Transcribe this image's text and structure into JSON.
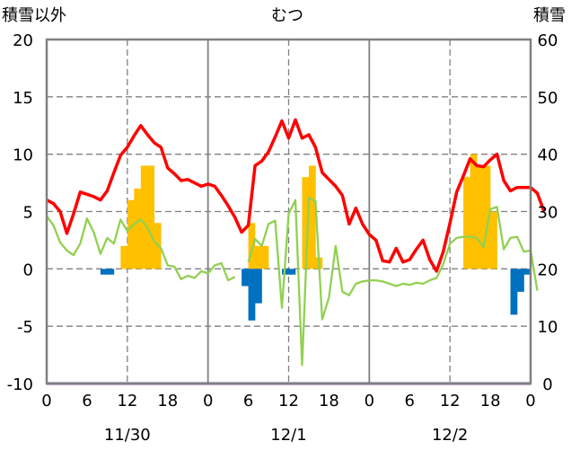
{
  "chart_data": {
    "type": "bar+line",
    "title": "むつ",
    "left_axis": {
      "label": "積雪以外",
      "ylim": [
        -10,
        20
      ],
      "ticks": [
        -10,
        -5,
        0,
        5,
        10,
        15,
        20
      ]
    },
    "right_axis": {
      "label": "積雪",
      "ylim": [
        0,
        60
      ],
      "ticks": [
        0,
        10,
        20,
        30,
        40,
        50,
        60
      ]
    },
    "x_axis": {
      "hour_ticks": [
        "0",
        "6",
        "12",
        "18",
        "0",
        "6",
        "12",
        "18",
        "0",
        "6",
        "12",
        "18",
        "0"
      ],
      "day_labels": [
        "11/30",
        "12/1",
        "12/2"
      ]
    },
    "grid": true,
    "colors": {
      "red": "#ff0000",
      "green": "#92d050",
      "orange": "#ffc000",
      "blue": "#0070c0",
      "purple": "#7030a0",
      "frame": "#808080"
    },
    "series": [
      {
        "axis": "left",
        "kind": "line",
        "color": "#ff0000",
        "values": [
          6,
          5.7,
          5,
          3.1,
          4.8,
          6.7,
          6.5,
          6.3,
          6,
          6.8,
          8.4,
          9.9,
          10.6,
          11.6,
          12.5,
          11.7,
          11,
          10.6,
          8.8,
          8.3,
          7.7,
          7.8,
          7.5,
          7.2,
          7.4,
          7.2,
          6.4,
          5.5,
          4.5,
          3.2,
          3.8,
          9,
          9.4,
          10.2,
          11.5,
          12.9,
          11.4,
          13,
          11.4,
          11.7,
          10.6,
          8.4,
          7.8,
          7.2,
          6.4,
          3.9,
          5.3,
          3.9,
          3,
          2.5,
          0.7,
          0.6,
          1.8,
          0.6,
          0.8,
          1.7,
          2.5,
          0.8,
          -0.2,
          1.5,
          4,
          6.7,
          8.1,
          9.6,
          9,
          8.9,
          9.5,
          10,
          7.7,
          6.8,
          7.1,
          7.1,
          7.1,
          6.6,
          5
        ]
      },
      {
        "axis": "left",
        "kind": "line",
        "color": "#92d050",
        "values": [
          4.6,
          3.8,
          2.3,
          1.6,
          1.2,
          2.2,
          4.4,
          3.2,
          1.3,
          2.7,
          2.2,
          4.3,
          3.3,
          3.9,
          4.3,
          3.6,
          2.4,
          1.8,
          0.3,
          0.2,
          -0.9,
          -0.6,
          -0.8,
          -0.2,
          -0.4,
          0.3,
          0.5,
          -1,
          -0.7,
          null,
          0.6,
          2.6,
          2,
          3.9,
          4.2,
          -3.4,
          4.8,
          6,
          -8.4,
          6.2,
          5.9,
          -4.4,
          -2.5,
          2,
          -2,
          -2.3,
          -1.3,
          -1.1,
          -1,
          -1,
          -1.1,
          -1.3,
          -1.5,
          -1.3,
          -1.4,
          -1.2,
          -1.3,
          -1,
          -0.8,
          0.4,
          2.2,
          2.7,
          2.8,
          2.8,
          2.7,
          1.9,
          5.2,
          5.4,
          1.7,
          2.7,
          2.8,
          1.5,
          1.6,
          -1.9
        ]
      },
      {
        "axis": "left",
        "kind": "bar",
        "color": "#ffc000",
        "values": [
          0,
          0,
          0,
          0,
          0,
          0,
          0,
          0,
          0,
          0,
          0,
          2,
          6,
          7,
          9,
          9,
          4,
          0,
          0,
          0,
          0,
          0,
          0,
          0,
          0,
          0,
          0,
          0,
          0,
          0,
          4,
          2,
          2,
          0,
          0,
          0,
          0,
          0,
          8,
          9,
          1,
          0,
          0,
          0,
          0,
          0,
          0,
          0,
          0,
          0,
          0,
          0,
          0,
          0,
          0,
          0,
          0,
          0,
          0,
          0,
          0,
          0,
          8,
          10,
          9,
          9,
          5,
          0,
          0,
          0,
          0,
          0,
          0
        ]
      },
      {
        "axis": "left",
        "kind": "bar",
        "color": "#0070c0",
        "values": [
          0,
          0,
          0,
          0,
          0,
          0,
          0,
          0,
          -0.5,
          -0.5,
          0,
          0,
          0,
          0,
          0,
          0,
          0,
          0,
          0,
          0,
          0,
          0,
          0,
          0,
          0,
          0,
          0,
          0,
          0,
          -1.5,
          -4.5,
          -3,
          0,
          0,
          0,
          -0.5,
          -0.5,
          0,
          0,
          0,
          0,
          0,
          0,
          0,
          0,
          0,
          0,
          0,
          0,
          0,
          0,
          0,
          0,
          0,
          0,
          0,
          0,
          0,
          0,
          0,
          0,
          0,
          0,
          0,
          0,
          0,
          0,
          0,
          0,
          -4,
          -2,
          -0.5,
          0
        ]
      },
      {
        "axis": "right",
        "kind": "line",
        "color": "#7030a0",
        "values": [
          0,
          0
        ]
      }
    ]
  }
}
